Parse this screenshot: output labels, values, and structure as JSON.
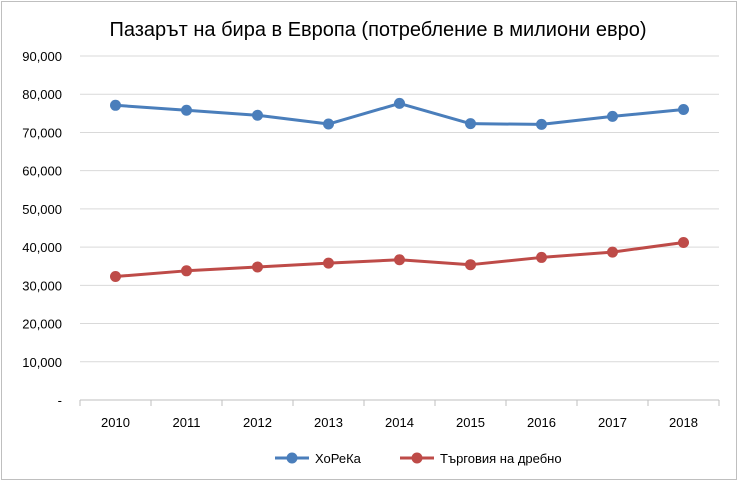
{
  "chart_data": {
    "type": "line",
    "title": "Пазарът на бира в Европа (потребление в милиони евро)",
    "categories": [
      "2010",
      "2011",
      "2012",
      "2013",
      "2014",
      "2015",
      "2016",
      "2017",
      "2018"
    ],
    "ylim": [
      0,
      90000
    ],
    "ytick_labels": [
      "-",
      "10,000",
      "20,000",
      "30,000",
      "40,000",
      "50,000",
      "60,000",
      "70,000",
      "80,000",
      "90,000"
    ],
    "ytick_values": [
      0,
      10000,
      20000,
      30000,
      40000,
      50000,
      60000,
      70000,
      80000,
      90000
    ],
    "grid": true,
    "legend_position": "bottom",
    "series": [
      {
        "name": "ХоРеКа",
        "color": "#4a7ebb",
        "values": [
          77100,
          75800,
          74500,
          72200,
          77600,
          72300,
          72100,
          74200,
          76000
        ]
      },
      {
        "name": "Търговия на дребно",
        "color": "#be4b48",
        "values": [
          32300,
          33800,
          34800,
          35800,
          36700,
          35400,
          37300,
          38700,
          41200
        ]
      }
    ]
  }
}
